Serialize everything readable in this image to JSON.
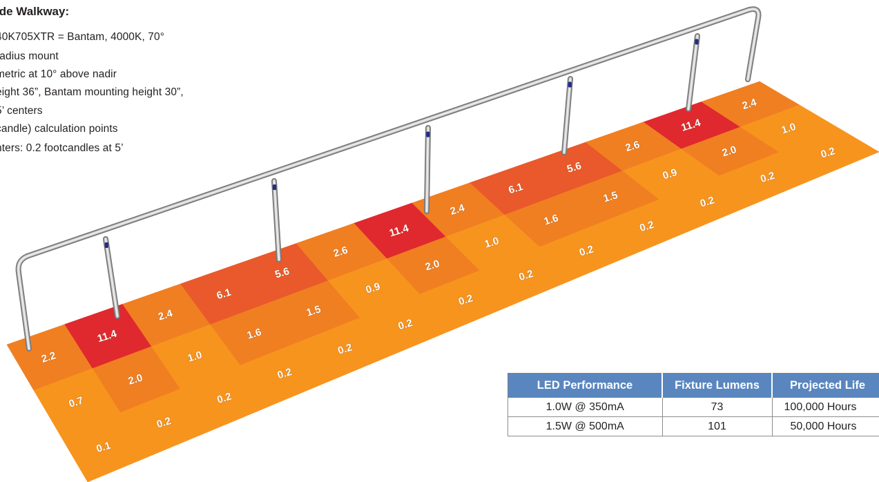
{
  "notes": {
    "title": "ide Walkway:",
    "lines": [
      "40K705XTR = Bantam, 4000K, 70°",
      "radius mount",
      "metric at 10° above nadir",
      "eight 36”, Bantam mounting height 30”,",
      " 5’ centers",
      "candle) calculation points",
      "nters: 0.2 footcandles at 5’"
    ]
  },
  "grid": {
    "colors": {
      "low": "#f7941e",
      "mid": "#f07f22",
      "high": "#e9592b",
      "peak": "#e0282f"
    },
    "rows": [
      [
        "2.2",
        "11.4",
        "2.4",
        "6.1",
        "5.6",
        "2.6",
        "11.4",
        "2.4",
        "6.1",
        "5.6",
        "2.6",
        "11.4",
        "2.4"
      ],
      [
        "0.7",
        "2.0",
        "1.0",
        "1.6",
        "1.5",
        "0.9",
        "2.0",
        "1.0",
        "1.6",
        "1.5",
        "0.9",
        "2.0",
        "1.0"
      ],
      [
        "0.1",
        "0.2",
        "0.2",
        "0.2",
        "0.2",
        "0.2",
        "0.2",
        "0.2",
        "0.2",
        "0.2",
        "0.2",
        "0.2",
        "0.2"
      ]
    ]
  },
  "table": {
    "headers": [
      "LED Performance",
      "Fixture Lumens",
      "Projected Life"
    ],
    "rows": [
      [
        "1.0W @ 350mA",
        "73",
        "100,000 Hours"
      ],
      [
        "1.5W @ 500mA",
        "101",
        "50,000 Hours"
      ]
    ]
  }
}
